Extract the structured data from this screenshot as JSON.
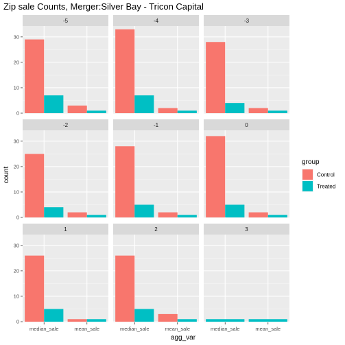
{
  "chart_data": {
    "type": "bar",
    "title": "Zip sale Counts, Merger:Silver Bay - Tricon Capital",
    "xlabel": "agg_var",
    "ylabel": "count",
    "categories": [
      "median_sale",
      "mean_sale"
    ],
    "ylim": [
      0,
      34
    ],
    "y_ticks": [
      0,
      10,
      20,
      30
    ],
    "grid": true,
    "legend": {
      "title": "group",
      "placement": "right",
      "entries": [
        {
          "name": "Control",
          "color": "#F8766D"
        },
        {
          "name": "Treated",
          "color": "#00BFC4"
        }
      ]
    },
    "facets": [
      {
        "label": "-5",
        "series": [
          {
            "name": "Control",
            "values": [
              29,
              3
            ]
          },
          {
            "name": "Treated",
            "values": [
              7,
              1
            ]
          }
        ]
      },
      {
        "label": "-4",
        "series": [
          {
            "name": "Control",
            "values": [
              33,
              2
            ]
          },
          {
            "name": "Treated",
            "values": [
              7,
              1
            ]
          }
        ]
      },
      {
        "label": "-3",
        "series": [
          {
            "name": "Control",
            "values": [
              28,
              2
            ]
          },
          {
            "name": "Treated",
            "values": [
              4,
              1
            ]
          }
        ]
      },
      {
        "label": "-2",
        "series": [
          {
            "name": "Control",
            "values": [
              25,
              2
            ]
          },
          {
            "name": "Treated",
            "values": [
              4,
              1
            ]
          }
        ]
      },
      {
        "label": "-1",
        "series": [
          {
            "name": "Control",
            "values": [
              28,
              2
            ]
          },
          {
            "name": "Treated",
            "values": [
              5,
              1
            ]
          }
        ]
      },
      {
        "label": "0",
        "series": [
          {
            "name": "Control",
            "values": [
              32,
              2
            ]
          },
          {
            "name": "Treated",
            "values": [
              5,
              1
            ]
          }
        ]
      },
      {
        "label": "1",
        "series": [
          {
            "name": "Control",
            "values": [
              26,
              1
            ]
          },
          {
            "name": "Treated",
            "values": [
              5,
              1
            ]
          }
        ]
      },
      {
        "label": "2",
        "series": [
          {
            "name": "Control",
            "values": [
              26,
              3
            ]
          },
          {
            "name": "Treated",
            "values": [
              5,
              1
            ]
          }
        ]
      },
      {
        "label": "3",
        "series": [
          {
            "name": "Treated",
            "values": [
              1,
              1
            ]
          }
        ]
      }
    ]
  }
}
